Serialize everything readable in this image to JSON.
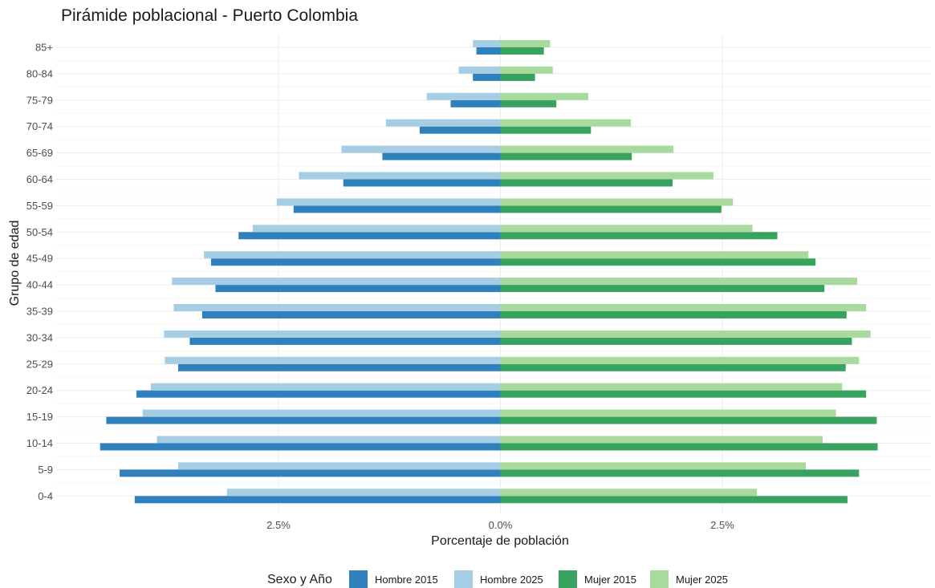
{
  "chart_data": {
    "type": "bar",
    "orientation": "horizontal",
    "title": "Pirámide poblacional - Puerto Colombia",
    "xlabel": "Porcentaje de población",
    "ylabel": "Grupo de edad",
    "categories": [
      "0-4",
      "5-9",
      "10-14",
      "15-19",
      "20-24",
      "25-29",
      "30-34",
      "35-39",
      "40-44",
      "45-49",
      "50-54",
      "55-59",
      "60-64",
      "65-69",
      "70-74",
      "75-79",
      "80-84",
      "85+"
    ],
    "xlim": [
      -5.0,
      4.9
    ],
    "x_ticks": [
      -2.5,
      0,
      2.5
    ],
    "x_tick_labels": [
      "2.5%",
      "0.0%",
      "2.5%"
    ],
    "grid": true,
    "legend_title": "Sexo y Año",
    "legend_position": "bottom",
    "series": [
      {
        "name": "Hombre 2015",
        "side": "left",
        "color": "#2f80bd",
        "values": [
          4.12,
          4.29,
          4.51,
          4.44,
          4.1,
          3.63,
          3.5,
          3.36,
          3.21,
          3.26,
          2.95,
          2.33,
          1.77,
          1.33,
          0.91,
          0.56,
          0.31,
          0.27
        ]
      },
      {
        "name": "Hombre 2025",
        "side": "left",
        "color": "#a5cde3",
        "values": [
          3.08,
          3.63,
          3.87,
          4.03,
          3.94,
          3.78,
          3.79,
          3.68,
          3.7,
          3.34,
          2.79,
          2.52,
          2.27,
          1.79,
          1.29,
          0.83,
          0.47,
          0.31
        ]
      },
      {
        "name": "Mujer 2015",
        "side": "right",
        "color": "#38a35f",
        "values": [
          3.91,
          4.04,
          4.25,
          4.24,
          4.12,
          3.89,
          3.96,
          3.9,
          3.65,
          3.55,
          3.12,
          2.49,
          1.94,
          1.48,
          1.02,
          0.63,
          0.39,
          0.49
        ]
      },
      {
        "name": "Mujer 2025",
        "side": "right",
        "color": "#a7da9c",
        "values": [
          2.89,
          3.44,
          3.63,
          3.78,
          3.85,
          4.04,
          4.17,
          4.12,
          4.02,
          3.47,
          2.84,
          2.62,
          2.4,
          1.95,
          1.47,
          0.99,
          0.59,
          0.56
        ]
      }
    ]
  }
}
